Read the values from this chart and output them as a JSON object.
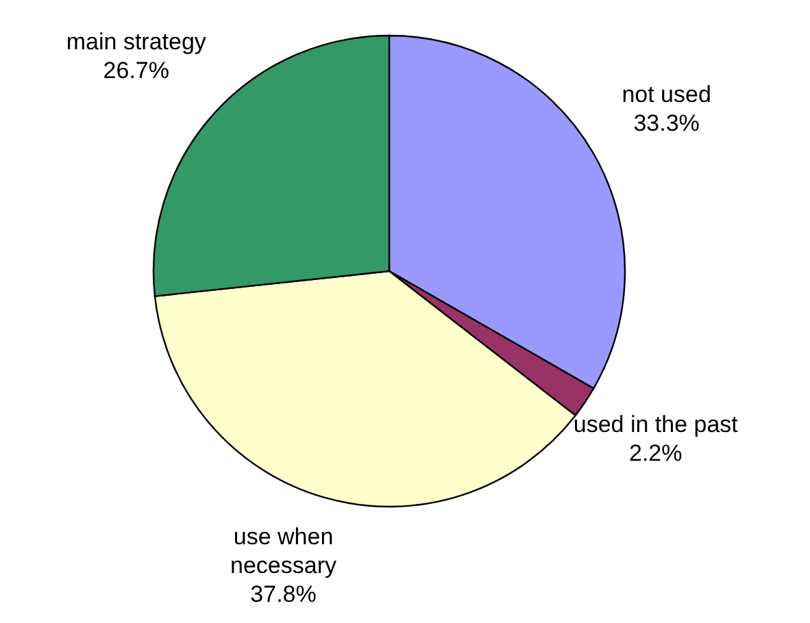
{
  "chart_data": {
    "type": "pie",
    "categories": [
      "not used",
      "used in the past",
      "use when necessary",
      "main strategy"
    ],
    "values": [
      33.3,
      2.2,
      37.8,
      26.7
    ],
    "colors": [
      "#9999ff",
      "#993366",
      "#ffffcc",
      "#339966"
    ],
    "value_labels": [
      "33.3%",
      "2.2%",
      "37.8%",
      "26.7%"
    ],
    "legend": false
  }
}
